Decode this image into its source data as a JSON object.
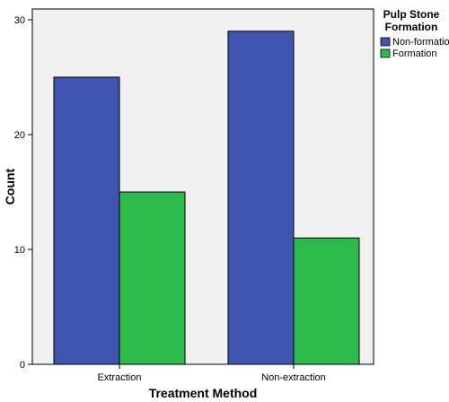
{
  "chart_data": {
    "type": "bar",
    "categories": [
      "Extraction",
      "Non-extraction"
    ],
    "series": [
      {
        "name": "Non-formation",
        "values": [
          25,
          29
        ],
        "color": "#3f55b0"
      },
      {
        "name": "Formation",
        "values": [
          15,
          11
        ],
        "color": "#2fbb4c"
      }
    ],
    "xlabel": "Treatment Method",
    "ylabel": "Count",
    "ylim": [
      0,
      30
    ],
    "yticks": [
      0,
      10,
      20,
      30
    ],
    "legend_title": "Pulp Stone Formation",
    "legend_title_lines": [
      "Pulp Stone",
      "Formation"
    ],
    "legend_position": "right",
    "grid": false,
    "plot_background": "#f0f0f0"
  }
}
